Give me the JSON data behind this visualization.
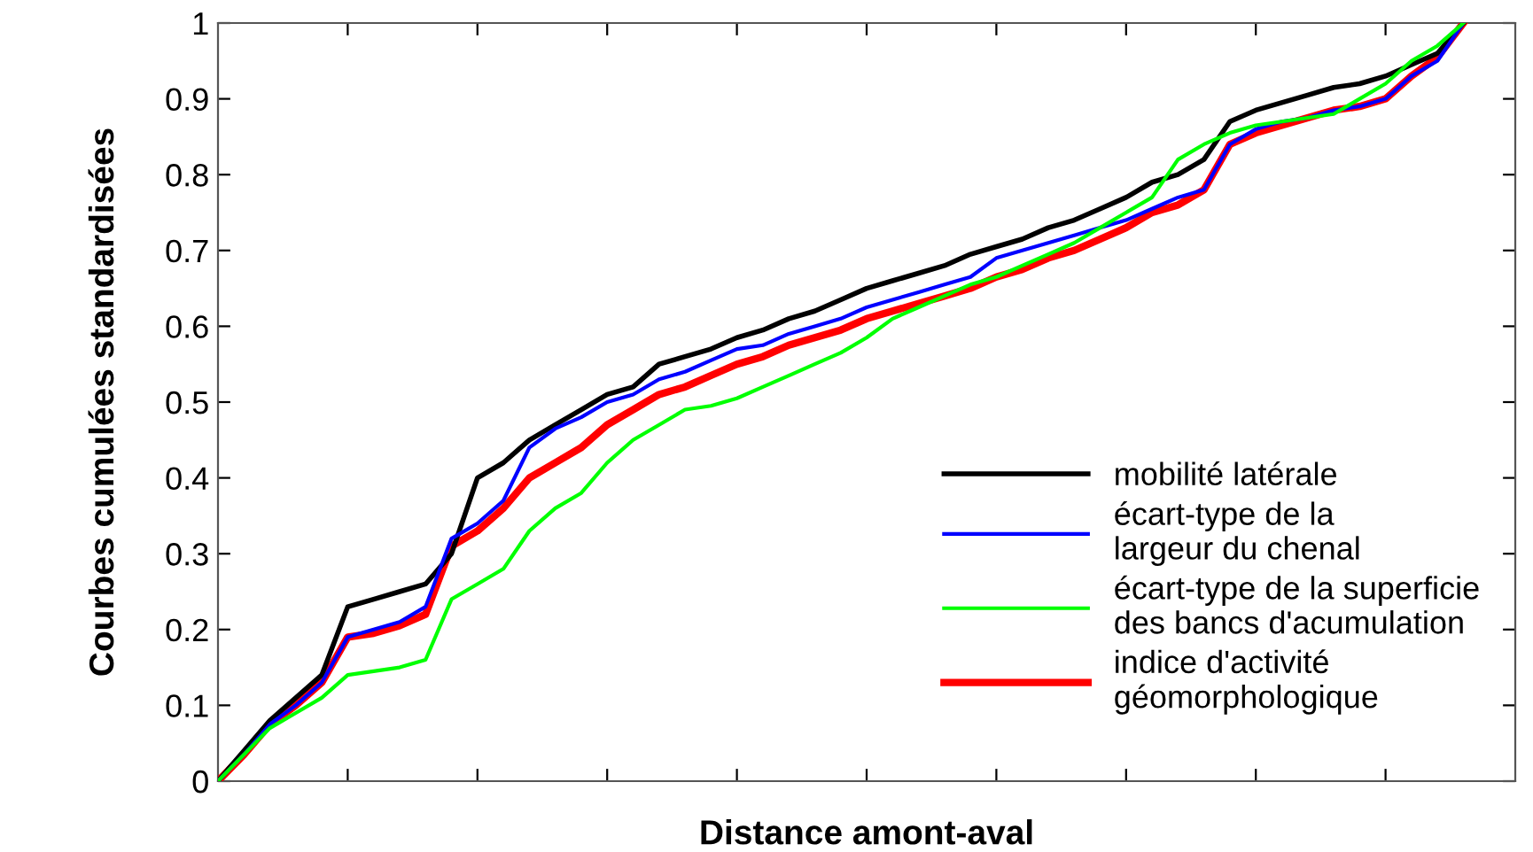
{
  "chart_data": {
    "type": "line",
    "xlabel": "Distance amont-aval",
    "ylabel": "Courbes cumulées standardisées",
    "categories": [
      null,
      null,
      null,
      null,
      null,
      null,
      null,
      null,
      null,
      null,
      null,
      null,
      null,
      null,
      null,
      null,
      null,
      null,
      null,
      null,
      null,
      null,
      null,
      null,
      null,
      null,
      null,
      null,
      null,
      null,
      null,
      null,
      null,
      null,
      null,
      null,
      null,
      null,
      null,
      null,
      null,
      null,
      null,
      null,
      null,
      null,
      null,
      null,
      null,
      null,
      null
    ],
    "ylim": [
      0,
      1
    ],
    "yticks": [
      0,
      0.1,
      0.2,
      0.3,
      0.4,
      0.5,
      0.6,
      0.7,
      0.8,
      0.9,
      1
    ],
    "grid": false,
    "legend": "bottom right",
    "marker": "none",
    "line_style": "solid",
    "series": [
      {
        "name": "mobilité latérale",
        "color": "#000000",
        "values": [
          0,
          0.04,
          0.08,
          0.11,
          0.14,
          0.23,
          0.24,
          0.25,
          0.26,
          0.3,
          0.4,
          0.42,
          0.45,
          0.47,
          0.49,
          0.51,
          0.52,
          0.55,
          0.56,
          0.57,
          0.585,
          0.595,
          0.61,
          0.62,
          0.635,
          0.65,
          0.66,
          0.67,
          0.68,
          0.695,
          0.705,
          0.715,
          0.73,
          0.74,
          0.755,
          0.77,
          0.79,
          0.8,
          0.82,
          0.87,
          0.885,
          0.895,
          0.905,
          0.915,
          0.92,
          0.93,
          0.945,
          0.96,
          1.0,
          null,
          null
        ]
      },
      {
        "name": "écart-type de la\nlargeur du chenal",
        "color": "#0000ff",
        "values": [
          0,
          0.035,
          0.075,
          0.1,
          0.13,
          0.19,
          0.2,
          0.21,
          0.23,
          0.32,
          0.34,
          0.37,
          0.44,
          0.465,
          0.48,
          0.5,
          0.51,
          0.53,
          0.54,
          0.555,
          0.57,
          0.575,
          0.59,
          0.6,
          0.61,
          0.625,
          0.635,
          0.645,
          0.655,
          0.665,
          0.69,
          0.7,
          0.71,
          0.72,
          0.73,
          0.74,
          0.755,
          0.77,
          0.78,
          0.84,
          0.86,
          0.87,
          0.875,
          0.885,
          0.89,
          0.9,
          0.93,
          0.95,
          1.0,
          null,
          null
        ]
      },
      {
        "name": "écart-type de la superficie\ndes bancs d'acumulation",
        "color": "#00ff00",
        "values": [
          0,
          0.035,
          0.07,
          0.09,
          0.11,
          0.14,
          0.145,
          0.15,
          0.16,
          0.24,
          0.26,
          0.28,
          0.33,
          0.36,
          0.38,
          0.42,
          0.45,
          0.47,
          0.49,
          0.495,
          0.505,
          0.52,
          0.535,
          0.55,
          0.565,
          0.585,
          0.61,
          0.625,
          0.64,
          0.655,
          0.665,
          0.68,
          0.695,
          0.71,
          0.73,
          0.75,
          0.77,
          0.82,
          0.84,
          0.855,
          0.865,
          0.87,
          0.875,
          0.88,
          0.9,
          0.92,
          0.95,
          0.97,
          1.0,
          null,
          null
        ]
      },
      {
        "name": "indice d'activité\ngéomorphologique",
        "color": "#ff0000",
        "values": [
          0,
          0.035,
          0.075,
          0.1,
          0.13,
          0.19,
          0.195,
          0.205,
          0.22,
          0.31,
          0.33,
          0.36,
          0.4,
          0.42,
          0.44,
          0.47,
          0.49,
          0.51,
          0.52,
          0.535,
          0.55,
          0.56,
          0.575,
          0.585,
          0.595,
          0.61,
          0.62,
          0.63,
          0.64,
          0.65,
          0.665,
          0.675,
          0.69,
          0.7,
          0.715,
          0.73,
          0.75,
          0.76,
          0.78,
          0.84,
          0.855,
          0.865,
          0.875,
          0.885,
          0.89,
          0.9,
          0.93,
          0.955,
          1.0,
          null,
          null
        ]
      }
    ]
  }
}
